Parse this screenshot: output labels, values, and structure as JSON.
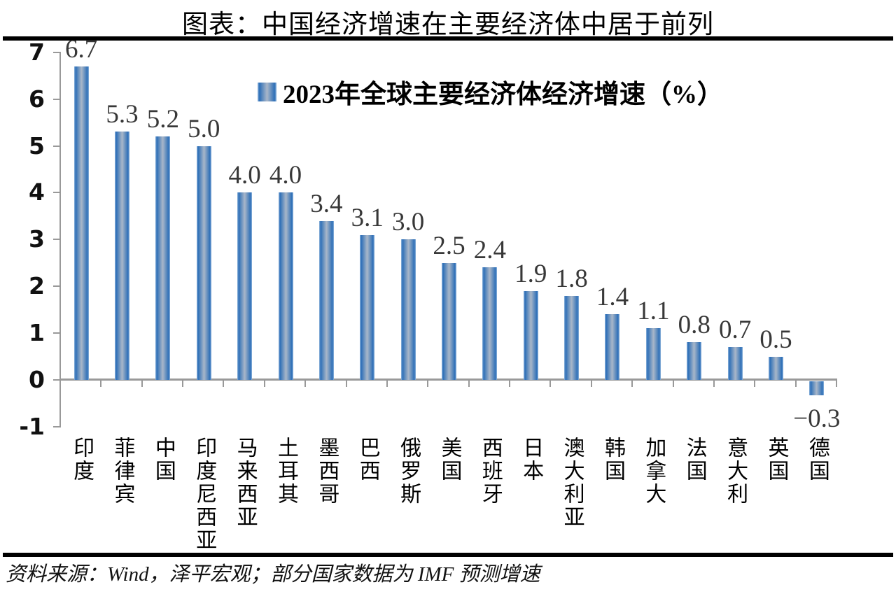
{
  "page": {
    "title": "图表：中国经济增速在主要经济体中居于前列",
    "footer": "资料来源：Wind，泽平宏观；部分国家数据为 IMF 预测增速"
  },
  "chart_data": {
    "type": "bar",
    "title": "图表：中国经济增速在主要经济体中居于前列",
    "legend": "2023年全球主要经济体经济增速（%）",
    "legend_position": "top-center",
    "categories": [
      "印度",
      "菲律宾",
      "中国",
      "印度尼西亚",
      "马来西亚",
      "土耳其",
      "墨西哥",
      "巴西",
      "俄罗斯",
      "美国",
      "西班牙",
      "日本",
      "澳大利亚",
      "韩国",
      "加拿大",
      "法国",
      "意大利",
      "英国",
      "德国"
    ],
    "values": [
      6.7,
      5.3,
      5.2,
      5.0,
      4.0,
      4.0,
      3.4,
      3.1,
      3.0,
      2.5,
      2.4,
      1.9,
      1.8,
      1.4,
      1.1,
      0.8,
      0.7,
      0.5,
      -0.3
    ],
    "value_labels": [
      "6.7",
      "5.3",
      "5.2",
      "5.0",
      "4.0",
      "4.0",
      "3.4",
      "3.1",
      "3.0",
      "2.5",
      "2.4",
      "1.9",
      "1.8",
      "1.4",
      "1.1",
      "0.8",
      "0.7",
      "0.5",
      "−0.3"
    ],
    "ylim": [
      -1,
      7
    ],
    "yticks": [
      7,
      6,
      5,
      4,
      3,
      2,
      1,
      0,
      -1
    ],
    "grid": false,
    "source": "资料来源：Wind，泽平宏观；部分国家数据为 IMF 预测增速",
    "colors": {
      "bar_edge": "#2e6fb7",
      "bar_mid": "#a9b7c9",
      "bar_rim": "#8fb4dc",
      "axis": "#999999",
      "value_label": "#383838",
      "text": "#000000",
      "rule": "#000000"
    }
  }
}
